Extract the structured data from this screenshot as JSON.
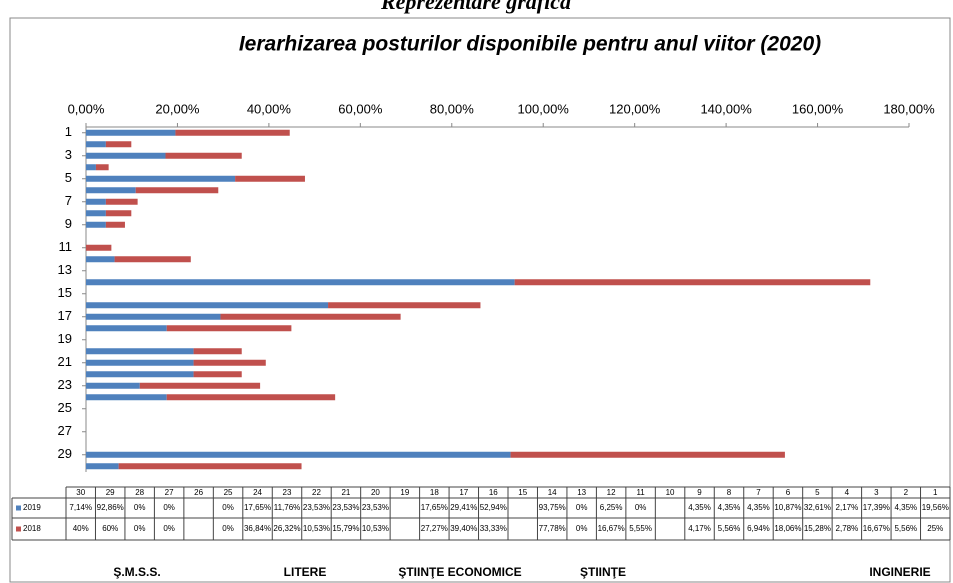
{
  "chart_data": {
    "type": "stacked-bar-horizontal",
    "title": "Reprezentare grafică",
    "subtitle": "Ierarhizarea posturilor disponibile pentru anul viitor (2020)",
    "categories": [
      "1",
      "2",
      "3",
      "4",
      "5",
      "6",
      "7",
      "8",
      "9",
      "10",
      "11",
      "12",
      "13",
      "14",
      "15",
      "16",
      "17",
      "18",
      "19",
      "20",
      "21",
      "22",
      "23",
      "24",
      "25",
      "26",
      "27",
      "28",
      "29",
      "30"
    ],
    "series": [
      {
        "name": "2019",
        "color": "#4f81bd",
        "values": [
          19.56,
          4.35,
          17.39,
          2.17,
          32.61,
          10.87,
          4.35,
          4.35,
          4.35,
          null,
          0,
          6.25,
          0,
          93.75,
          null,
          52.94,
          29.41,
          17.65,
          null,
          23.53,
          23.53,
          23.53,
          11.76,
          17.65,
          0,
          null,
          0,
          0,
          92.86,
          7.14
        ],
        "value_labels": [
          "19,56%",
          "4,35%",
          "17,39%",
          "2,17%",
          "32,61%",
          "10,87%",
          "4,35%",
          "4,35%",
          "4,35%",
          null,
          "0%",
          "6,25%",
          "0%",
          "93,75%",
          null,
          "52,94%",
          "29,41%",
          "17,65%",
          null,
          "23,53%",
          "23,53%",
          "23,53%",
          "11,76%",
          "17,65%",
          "0%",
          null,
          "0%",
          "0%",
          "92,86%",
          "7,14%"
        ]
      },
      {
        "name": "2018",
        "color": "#c0504d",
        "values": [
          25,
          5.56,
          16.67,
          2.78,
          15.28,
          18.06,
          6.94,
          5.56,
          4.17,
          null,
          5.55,
          16.67,
          0,
          77.78,
          null,
          33.33,
          39.4,
          27.27,
          null,
          10.53,
          15.79,
          10.53,
          26.32,
          36.84,
          0,
          null,
          0,
          0,
          60,
          40
        ],
        "value_labels": [
          "25%",
          "5,56%",
          "16,67%",
          "2,78%",
          "15,28%",
          "18,06%",
          "6,94%",
          "5,56%",
          "4,17%",
          null,
          "5,55%",
          "16,67%",
          "0%",
          "77,78%",
          null,
          "33,33%",
          "39,40%",
          "27,27%",
          null,
          "10,53%",
          "15,79%",
          "10,53%",
          "26,32%",
          "36,84%",
          "0%",
          null,
          "0%",
          "0%",
          "60%",
          "40%"
        ]
      }
    ],
    "xlim": [
      0,
      180
    ],
    "xticks": [
      {
        "value": 0,
        "label": "0,00%"
      },
      {
        "value": 20,
        "label": "20,00%"
      },
      {
        "value": 40,
        "label": "40,00%"
      },
      {
        "value": 60,
        "label": "60,00%"
      },
      {
        "value": 80,
        "label": "80,00%"
      },
      {
        "value": 100,
        "label": "100,00%"
      },
      {
        "value": 120,
        "label": "120,00%"
      },
      {
        "value": 140,
        "label": "140,00%"
      },
      {
        "value": 160,
        "label": "160,00%"
      },
      {
        "value": 180,
        "label": "180,00%"
      }
    ],
    "groups": [
      "Ş.M.S.S.",
      "LITERE",
      "ŞTIINŢE ECONOMICE",
      "ŞTIINŢE",
      "INGINERIE"
    ]
  }
}
